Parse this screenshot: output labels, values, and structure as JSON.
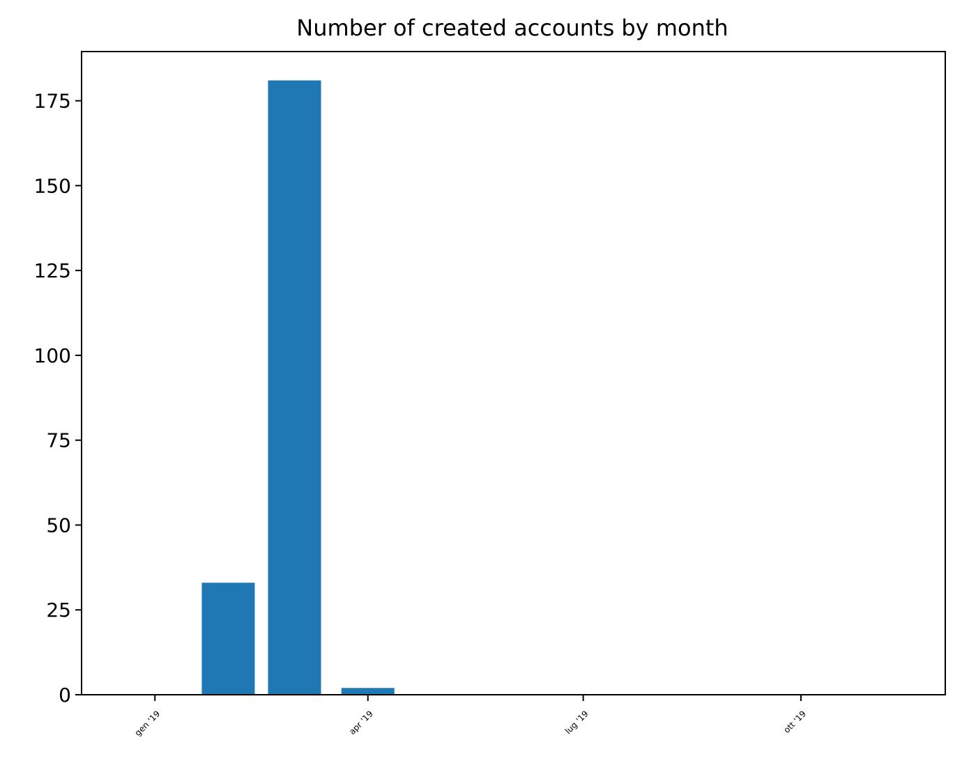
{
  "chart_data": {
    "type": "bar",
    "title": "Number of created accounts by month",
    "xlabel": "",
    "ylabel": "",
    "x_range": [
      "2018-12",
      "2019-12"
    ],
    "ylim": [
      0,
      189.5
    ],
    "yticks": [
      0,
      25,
      50,
      75,
      100,
      125,
      150,
      175
    ],
    "xticks": [
      {
        "date": "2019-01",
        "label": "gen '19"
      },
      {
        "date": "2019-04",
        "label": "apr '19"
      },
      {
        "date": "2019-07",
        "label": "lug '19"
      },
      {
        "date": "2019-10",
        "label": "ott '19"
      }
    ],
    "categories": [
      "2019-02",
      "2019-03",
      "2019-04"
    ],
    "values": [
      33,
      181,
      2
    ],
    "color": "#1f77b4",
    "grid": false,
    "legend": "none"
  }
}
